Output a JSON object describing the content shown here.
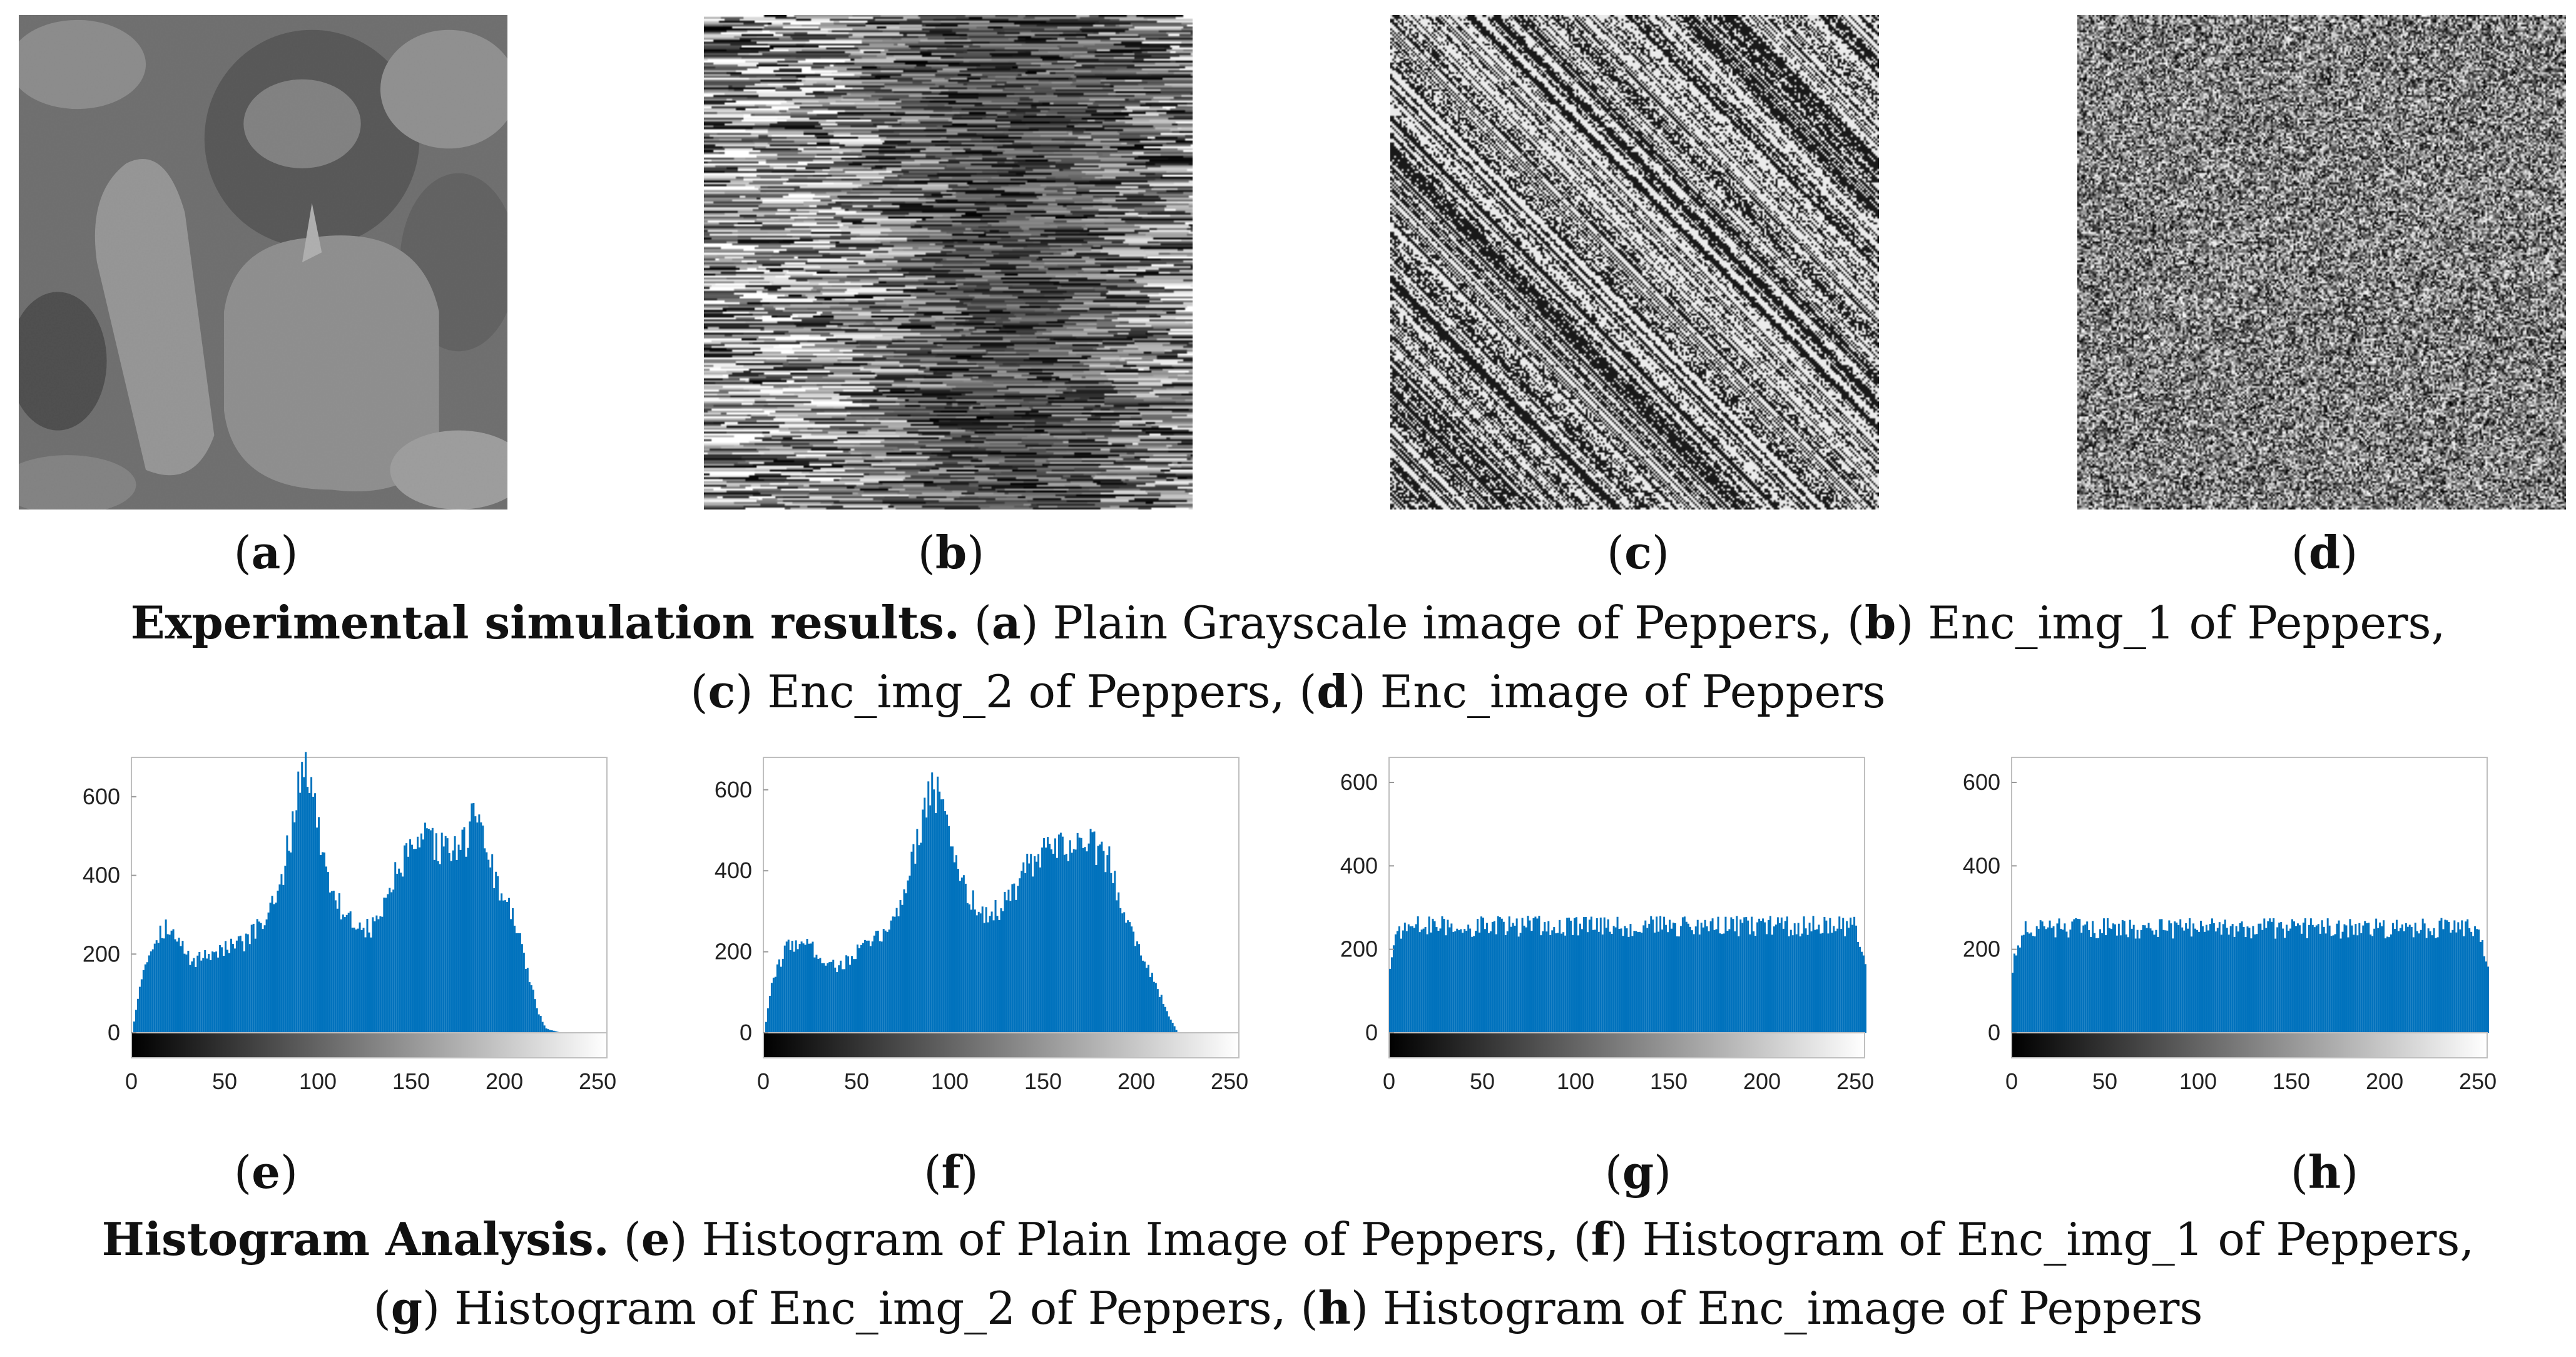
{
  "panels": {
    "a": {
      "label": "a"
    },
    "b": {
      "label": "b"
    },
    "c": {
      "label": "c"
    },
    "d": {
      "label": "d"
    },
    "e": {
      "label": "e"
    },
    "f": {
      "label": "f"
    },
    "g": {
      "label": "g"
    },
    "h": {
      "label": "h"
    }
  },
  "caption1": {
    "title": "Experimental simulation results.",
    "a_text": " Plain Grayscale image of Peppers, ",
    "b_text": " Enc_img_1 of Peppers,",
    "c_text": " Enc_img_2 of Peppers, ",
    "d_text": "  Enc_image of Peppers"
  },
  "caption2": {
    "title": "Histogram Analysis.",
    "e_text": " Histogram of Plain Image of Peppers, ",
    "f_text": " Histogram of Enc_img_1 of Peppers,",
    "g_text": " Histogram of Enc_img_2 of Peppers, ",
    "h_text": "  Histogram of Enc_image of Peppers"
  },
  "chart_data": [
    {
      "type": "bar",
      "panel": "e",
      "x_ticks": [
        0,
        50,
        100,
        150,
        200,
        250
      ],
      "y_ticks": [
        0,
        200,
        400,
        600
      ],
      "xlim": [
        0,
        255
      ],
      "ylim": [
        0,
        700
      ],
      "color": "#0072BD",
      "profile": [
        [
          0,
          0
        ],
        [
          5,
          150
        ],
        [
          12,
          240
        ],
        [
          18,
          270
        ],
        [
          25,
          230
        ],
        [
          32,
          180
        ],
        [
          40,
          200
        ],
        [
          50,
          215
        ],
        [
          60,
          230
        ],
        [
          70,
          280
        ],
        [
          78,
          340
        ],
        [
          84,
          480
        ],
        [
          90,
          650
        ],
        [
          93,
          690
        ],
        [
          97,
          600
        ],
        [
          102,
          460
        ],
        [
          110,
          330
        ],
        [
          118,
          280
        ],
        [
          128,
          260
        ],
        [
          135,
          320
        ],
        [
          142,
          410
        ],
        [
          150,
          460
        ],
        [
          158,
          490
        ],
        [
          165,
          470
        ],
        [
          172,
          460
        ],
        [
          180,
          500
        ],
        [
          185,
          580
        ],
        [
          189,
          500
        ],
        [
          195,
          380
        ],
        [
          202,
          320
        ],
        [
          210,
          200
        ],
        [
          217,
          60
        ],
        [
          222,
          10
        ],
        [
          230,
          0
        ],
        [
          255,
          0
        ]
      ]
    },
    {
      "type": "bar",
      "panel": "f",
      "x_ticks": [
        0,
        50,
        100,
        150,
        200,
        250
      ],
      "y_ticks": [
        0,
        200,
        400,
        600
      ],
      "xlim": [
        0,
        255
      ],
      "ylim": [
        0,
        680
      ],
      "color": "#0072BD",
      "profile": [
        [
          0,
          0
        ],
        [
          5,
          140
        ],
        [
          12,
          210
        ],
        [
          20,
          230
        ],
        [
          30,
          190
        ],
        [
          40,
          160
        ],
        [
          50,
          200
        ],
        [
          60,
          230
        ],
        [
          70,
          280
        ],
        [
          78,
          400
        ],
        [
          84,
          520
        ],
        [
          90,
          620
        ],
        [
          95,
          560
        ],
        [
          102,
          440
        ],
        [
          110,
          330
        ],
        [
          120,
          290
        ],
        [
          130,
          320
        ],
        [
          140,
          400
        ],
        [
          150,
          440
        ],
        [
          160,
          460
        ],
        [
          170,
          470
        ],
        [
          178,
          460
        ],
        [
          185,
          420
        ],
        [
          192,
          320
        ],
        [
          200,
          220
        ],
        [
          210,
          120
        ],
        [
          218,
          30
        ],
        [
          222,
          0
        ],
        [
          255,
          0
        ]
      ]
    },
    {
      "type": "bar",
      "panel": "g",
      "x_ticks": [
        0,
        50,
        100,
        150,
        200,
        250
      ],
      "y_ticks": [
        0,
        200,
        400,
        600
      ],
      "xlim": [
        0,
        255
      ],
      "ylim": [
        0,
        660
      ],
      "color": "#0072BD",
      "profile": [
        [
          0,
          160
        ],
        [
          3,
          230
        ],
        [
          8,
          255
        ],
        [
          250,
          255
        ],
        [
          254,
          180
        ],
        [
          255,
          160
        ]
      ]
    },
    {
      "type": "bar",
      "panel": "h",
      "x_ticks": [
        0,
        50,
        100,
        150,
        200,
        250
      ],
      "y_ticks": [
        0,
        200,
        400,
        600
      ],
      "xlim": [
        0,
        255
      ],
      "ylim": [
        0,
        660
      ],
      "color": "#0072BD",
      "profile": [
        [
          0,
          150
        ],
        [
          3,
          220
        ],
        [
          8,
          250
        ],
        [
          250,
          250
        ],
        [
          254,
          170
        ],
        [
          255,
          150
        ]
      ]
    }
  ]
}
